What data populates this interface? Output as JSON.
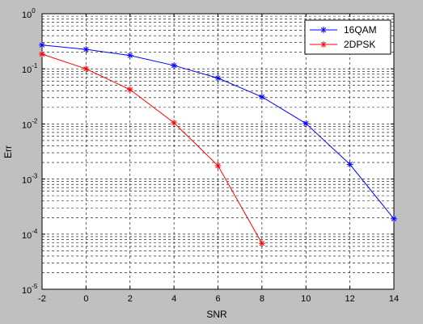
{
  "figure": {
    "background": "#c0c0c0",
    "axes_background": "#ffffff"
  },
  "chart_data": {
    "type": "line",
    "title": "",
    "xlabel": "SNR",
    "ylabel": "Err",
    "xlim": [
      -2,
      14
    ],
    "ylim": [
      1e-05,
      1
    ],
    "yscale": "log",
    "grid": true,
    "grid_style": "dashed-black-with-minor-y",
    "x_ticks": [
      -2,
      0,
      2,
      4,
      6,
      8,
      10,
      12,
      14
    ],
    "x_tick_labels": [
      "-2",
      "0",
      "2",
      "4",
      "6",
      "8",
      "10",
      "12",
      "14"
    ],
    "y_ticks": [
      {
        "value": 1e-05,
        "base": "10",
        "exp": "-5"
      },
      {
        "value": 0.0001,
        "base": "10",
        "exp": "-4"
      },
      {
        "value": 0.001,
        "base": "10",
        "exp": "-3"
      },
      {
        "value": 0.01,
        "base": "10",
        "exp": "-2"
      },
      {
        "value": 0.1,
        "base": "10",
        "exp": "-1"
      },
      {
        "value": 1,
        "base": "10",
        "exp": "0"
      }
    ],
    "legend_position": "top-right",
    "series": [
      {
        "name": "16QAM",
        "color": "#0000ff",
        "marker": "asterisk",
        "x": [
          -2,
          0,
          2,
          4,
          6,
          8,
          10,
          12,
          14
        ],
        "y": [
          0.27,
          0.225,
          0.175,
          0.115,
          0.068,
          0.031,
          0.0102,
          0.00185,
          0.00019
        ]
      },
      {
        "name": "2DPSK",
        "color": "#ff0000",
        "marker": "asterisk",
        "x": [
          -2,
          0,
          2,
          4,
          6,
          8
        ],
        "y": [
          0.185,
          0.1,
          0.042,
          0.0105,
          0.00175,
          6.8e-05
        ]
      }
    ]
  }
}
